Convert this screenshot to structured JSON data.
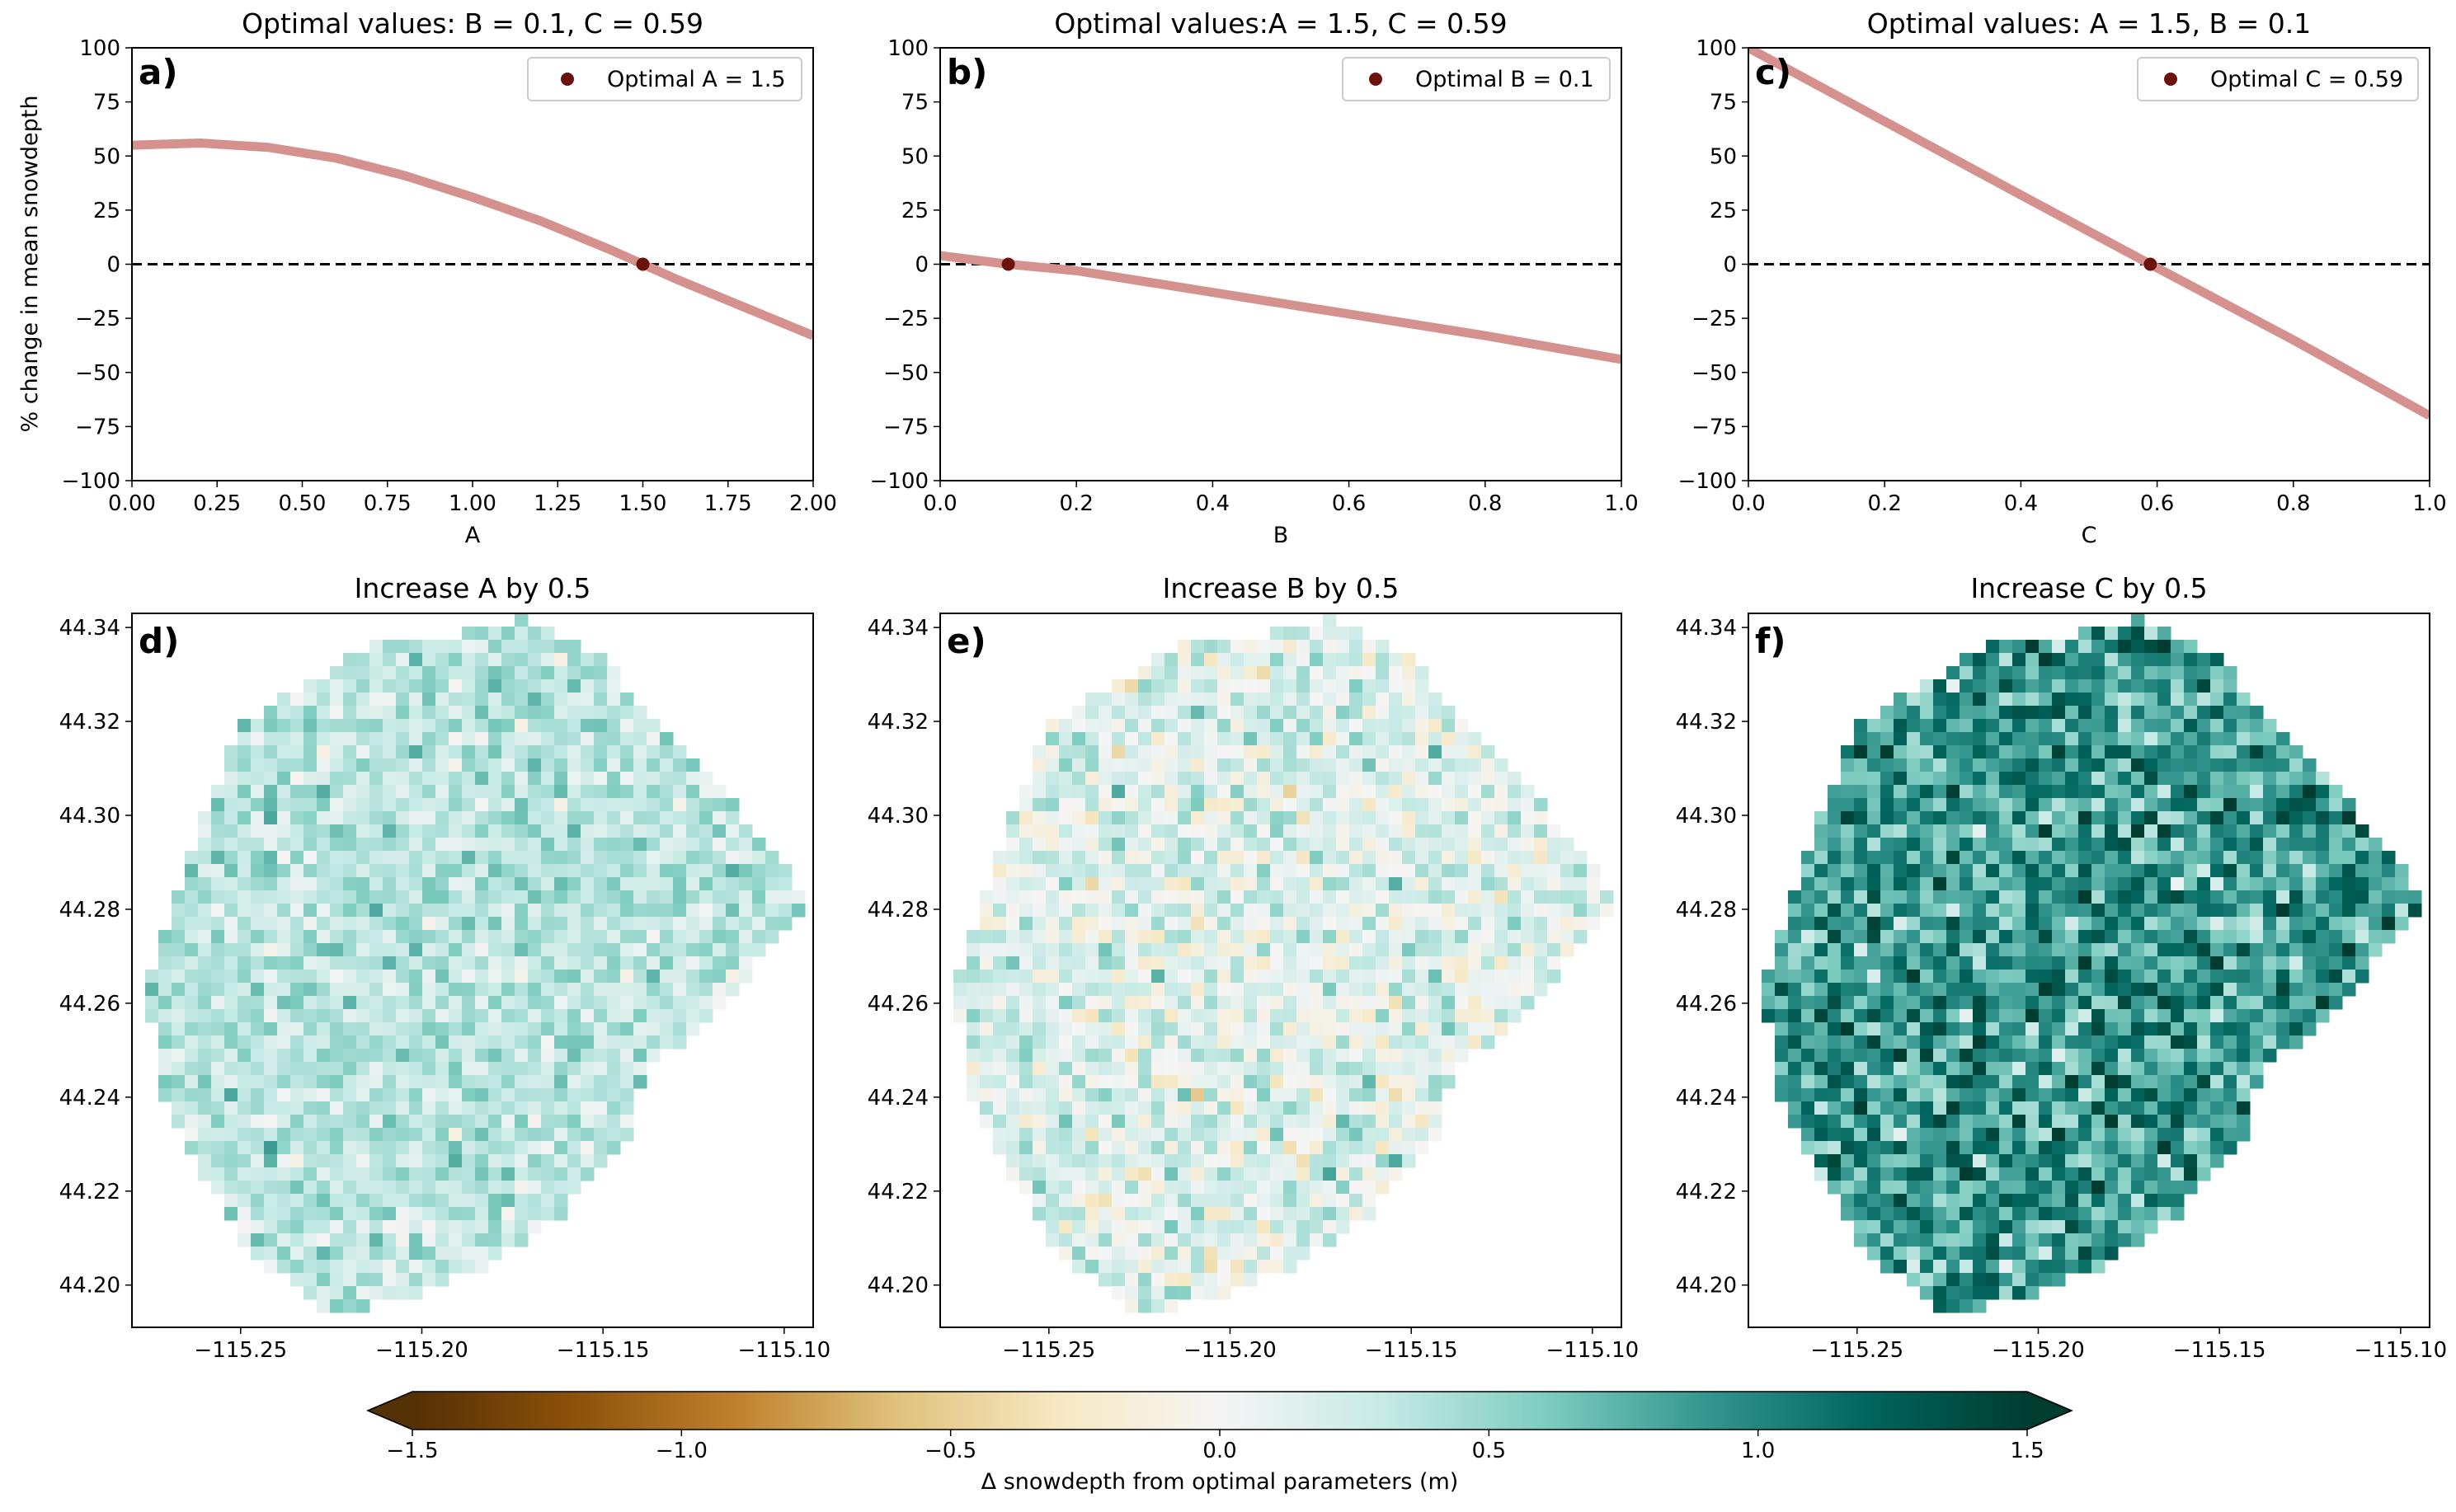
{
  "figure": {
    "colorbar": {
      "label": "Δ snowdepth from optimal parameters (m)",
      "ticks": [
        "−1.5",
        "−1.0",
        "−0.5",
        "0.0",
        "0.5",
        "1.0",
        "1.5"
      ],
      "range": [
        -1.5,
        1.5
      ],
      "extend": "both",
      "colormap": "BrBG",
      "colors": [
        "#543005",
        "#8c510a",
        "#bf812d",
        "#dfc27d",
        "#f6e8c3",
        "#f5f5f5",
        "#c7eae5",
        "#80cdc1",
        "#35978f",
        "#01665e",
        "#003c30"
      ]
    }
  },
  "chart_data": [
    {
      "type": "line",
      "panel_label": "a)",
      "title": "Optimal values: B = 0.1, C = 0.59",
      "xlabel": "A",
      "ylabel": "% change in mean snowdepth",
      "xlim": [
        0,
        2
      ],
      "ylim": [
        -100,
        100
      ],
      "xticks": [
        "0.00",
        "0.25",
        "0.50",
        "0.75",
        "1.00",
        "1.25",
        "1.50",
        "1.75",
        "2.00"
      ],
      "yticks": [
        "100",
        "75",
        "50",
        "25",
        "0",
        "−25",
        "−50",
        "−75",
        "−100"
      ],
      "series": [
        {
          "x": [
            0,
            0.2,
            0.4,
            0.6,
            0.8,
            1.0,
            1.2,
            1.4,
            1.5,
            1.6,
            1.8,
            2.0
          ],
          "y": [
            55,
            56,
            54,
            49,
            41,
            31,
            20,
            7,
            0,
            -7,
            -20,
            -33
          ],
          "color": "#d4918e"
        }
      ],
      "reference_line": {
        "y": 0,
        "style": "dashed",
        "color": "#000000"
      },
      "optimal_point": {
        "x": 1.5,
        "y": 0,
        "color": "#6b130b"
      },
      "legend": {
        "label": "Optimal A = 1.5",
        "position": "top-right"
      }
    },
    {
      "type": "line",
      "panel_label": "b)",
      "title": "Optimal values:A = 1.5, C = 0.59",
      "xlabel": "B",
      "ylabel": "",
      "xlim": [
        0,
        1
      ],
      "ylim": [
        -100,
        100
      ],
      "xticks": [
        "0.0",
        "0.2",
        "0.4",
        "0.6",
        "0.8",
        "1.0"
      ],
      "yticks": [
        "100",
        "75",
        "50",
        "25",
        "0",
        "−25",
        "−50",
        "−75",
        "−100"
      ],
      "series": [
        {
          "x": [
            0,
            0.1,
            0.2,
            0.4,
            0.6,
            0.8,
            1.0
          ],
          "y": [
            4,
            0,
            -3,
            -13,
            -23,
            -33,
            -44
          ],
          "color": "#d4918e"
        }
      ],
      "reference_line": {
        "y": 0,
        "style": "dashed",
        "color": "#000000"
      },
      "optimal_point": {
        "x": 0.1,
        "y": 0,
        "color": "#6b130b"
      },
      "legend": {
        "label": "Optimal B = 0.1",
        "position": "top-right"
      }
    },
    {
      "type": "line",
      "panel_label": "c)",
      "title": "Optimal values: A = 1.5, B = 0.1",
      "xlabel": "C",
      "ylabel": "",
      "xlim": [
        0,
        1
      ],
      "ylim": [
        -100,
        100
      ],
      "xticks": [
        "0.0",
        "0.2",
        "0.4",
        "0.6",
        "0.8",
        "1.0"
      ],
      "yticks": [
        "100",
        "75",
        "50",
        "25",
        "0",
        "−25",
        "−50",
        "−75",
        "−100"
      ],
      "series": [
        {
          "x": [
            0,
            0.2,
            0.4,
            0.59,
            0.8,
            1.0
          ],
          "y": [
            100,
            66,
            32,
            0,
            -35,
            -70
          ],
          "color": "#d4918e"
        }
      ],
      "reference_line": {
        "y": 0,
        "style": "dashed",
        "color": "#000000"
      },
      "optimal_point": {
        "x": 0.59,
        "y": 0,
        "color": "#6b130b"
      },
      "legend": {
        "label": "Optimal C = 0.59",
        "position": "top-right"
      }
    },
    {
      "type": "heatmap",
      "panel_label": "d)",
      "title": "Increase A by 0.5",
      "xlim": [
        -115.28,
        -115.092
      ],
      "ylim": [
        44.191,
        44.343
      ],
      "xticks": [
        "−115.25",
        "−115.20",
        "−115.15",
        "−115.10"
      ],
      "yticks": [
        "44.34",
        "44.32",
        "44.30",
        "44.28",
        "44.26",
        "44.24",
        "44.22",
        "44.20"
      ],
      "mean_value_m": 0.35,
      "spread_m": 0.35,
      "nonnegative": false,
      "colormap": "BrBG"
    },
    {
      "type": "heatmap",
      "panel_label": "e)",
      "title": "Increase B by 0.5",
      "xlim": [
        -115.28,
        -115.092
      ],
      "ylim": [
        44.191,
        44.343
      ],
      "xticks": [
        "−115.25",
        "−115.20",
        "−115.15",
        "−115.10"
      ],
      "yticks": [
        "44.34",
        "44.32",
        "44.30",
        "44.28",
        "44.26",
        "44.24",
        "44.22",
        "44.20"
      ],
      "mean_value_m": 0.15,
      "spread_m": 0.45,
      "nonnegative": false,
      "colormap": "BrBG"
    },
    {
      "type": "heatmap",
      "panel_label": "f)",
      "title": "Increase C by 0.5",
      "xlim": [
        -115.28,
        -115.092
      ],
      "ylim": [
        44.191,
        44.343
      ],
      "xticks": [
        "−115.25",
        "−115.20",
        "−115.15",
        "−115.10"
      ],
      "yticks": [
        "44.34",
        "44.32",
        "44.30",
        "44.28",
        "44.26",
        "44.24",
        "44.22",
        "44.20"
      ],
      "mean_value_m": 0.9,
      "spread_m": 0.6,
      "nonnegative": true,
      "colormap": "BrBG"
    }
  ]
}
